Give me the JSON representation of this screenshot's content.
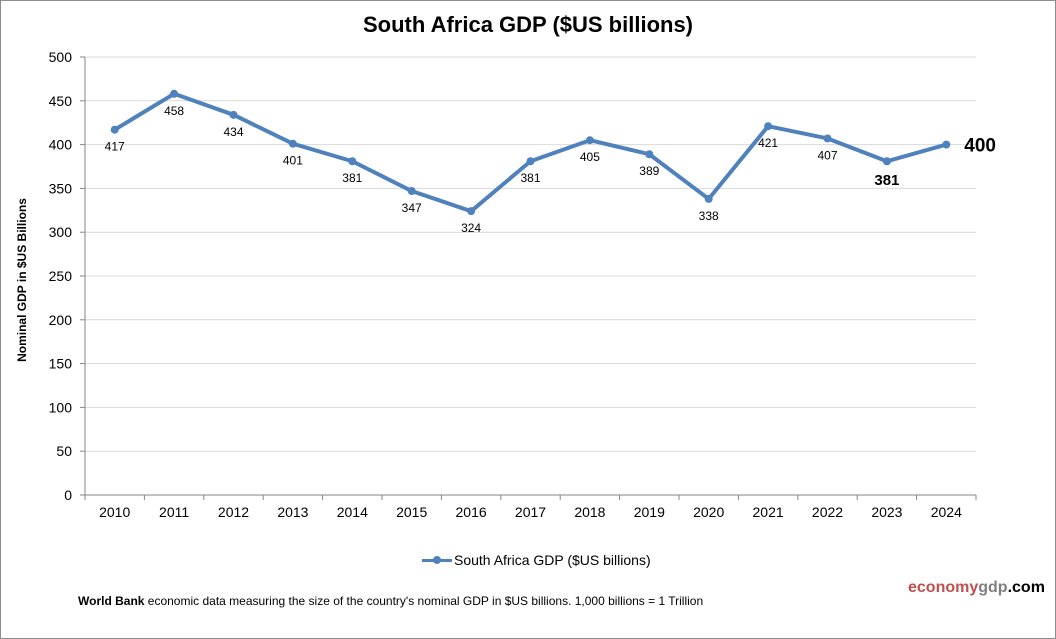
{
  "chart_data": {
    "type": "line",
    "title": "South Africa GDP ($US billions)",
    "xlabel": "",
    "ylabel": "Nominal GDP in $US Billions",
    "categories": [
      "2010",
      "2011",
      "2012",
      "2013",
      "2014",
      "2015",
      "2016",
      "2017",
      "2018",
      "2019",
      "2020",
      "2021",
      "2022",
      "2023",
      "2024"
    ],
    "series": [
      {
        "name": "South Africa GDP ($US billions)",
        "color": "#4f81bd",
        "values": [
          417,
          458,
          434,
          401,
          381,
          347,
          324,
          381,
          405,
          389,
          338,
          421,
          407,
          381,
          400
        ]
      }
    ],
    "ylim": [
      0,
      500
    ],
    "yticks": [
      0,
      50,
      100,
      150,
      200,
      250,
      300,
      350,
      400,
      450,
      500
    ],
    "grid": true,
    "legend": "bottom-center",
    "highlighted_labels": [
      "2023",
      "2024"
    ]
  },
  "footnote": {
    "bold": "World Bank",
    "text": " economic data  measuring the size of the country's nominal GDP in $US billions. 1,000 billions = 1 Trillion"
  },
  "logo": {
    "part1": "economy",
    "part2": "gdp",
    "part3": ".com"
  }
}
